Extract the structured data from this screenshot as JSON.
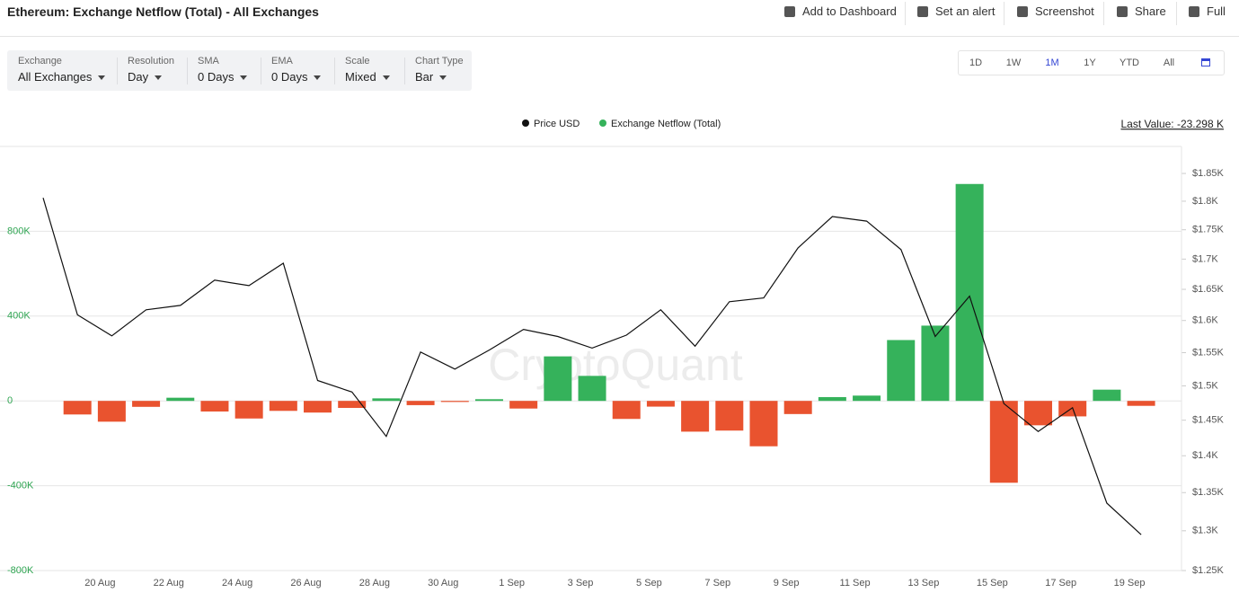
{
  "header": {
    "title": "Ethereum: Exchange Netflow (Total) - All Exchanges",
    "actions": [
      "Add to Dashboard",
      "Set an alert",
      "Screenshot",
      "Share",
      "Full"
    ]
  },
  "toolbar": {
    "filters": [
      {
        "label": "Exchange",
        "value": "All Exchanges"
      },
      {
        "label": "Resolution",
        "value": "Day"
      },
      {
        "label": "SMA",
        "value": "0 Days"
      },
      {
        "label": "EMA",
        "value": "0 Days"
      },
      {
        "label": "Scale",
        "value": "Mixed"
      },
      {
        "label": "Chart Type",
        "value": "Bar"
      }
    ],
    "ranges": [
      "1D",
      "1W",
      "1M",
      "1Y",
      "YTD",
      "All"
    ]
  },
  "chart_data": {
    "type": "combo",
    "last_value": "Last Value: -23.298 K",
    "watermark": "CryptoQuant",
    "categories": [
      null,
      null,
      "20 Aug",
      null,
      "22 Aug",
      null,
      "24 Aug",
      null,
      "26 Aug",
      null,
      "28 Aug",
      null,
      "30 Aug",
      null,
      "1 Sep",
      null,
      "3 Sep",
      null,
      "5 Sep",
      null,
      "7 Sep",
      null,
      "9 Sep",
      null,
      "11 Sep",
      null,
      "13 Sep",
      null,
      "15 Sep",
      null,
      "17 Sep",
      null,
      "19 Sep"
    ],
    "series": [
      {
        "name": "Price USD",
        "type": "line",
        "axis": "y2",
        "color": "#111111",
        "values": [
          1806,
          1609,
          1576,
          1617,
          1624,
          1665,
          1656,
          1693,
          1508,
          1491,
          1427,
          1551,
          1525,
          1554,
          1586,
          1575,
          1557,
          1577,
          1617,
          1560,
          1630,
          1636,
          1719,
          1773,
          1765,
          1716,
          1575,
          1639,
          1474,
          1434,
          1468,
          1336,
          1295
        ]
      },
      {
        "name": "Exchange Netflow (Total)",
        "type": "bar",
        "color": "#35b25b",
        "negative_color": "#e9532f",
        "values": [
          null,
          -64000,
          -98000,
          -28000,
          15000,
          -50000,
          -83000,
          -47000,
          -55000,
          -33000,
          12000,
          -20000,
          -5000,
          8000,
          -36000,
          210000,
          118000,
          -85000,
          -27000,
          -145000,
          -140000,
          -214000,
          -62000,
          18000,
          25000,
          287000,
          355000,
          1023000,
          -386000,
          -115000,
          -73000,
          53000,
          -23298
        ]
      }
    ],
    "ylim": [
      -800000,
      1200000
    ],
    "yticks": [
      {
        "value": -800000,
        "label": "-800K"
      },
      {
        "value": -400000,
        "label": "-400K"
      },
      0,
      {
        "value": 400000,
        "label": "400K"
      },
      {
        "value": 800000,
        "label": "800K"
      }
    ],
    "y2lim": [
      1250,
      1900
    ],
    "y2scale": "log",
    "y2ticks": [
      {
        "value": 1250,
        "label": "$1.25K"
      },
      {
        "value": 1300,
        "label": "$1.3K"
      },
      {
        "value": 1350,
        "label": "$1.35K"
      },
      {
        "value": 1400,
        "label": "$1.4K"
      },
      {
        "value": 1450,
        "label": "$1.45K"
      },
      {
        "value": 1500,
        "label": "$1.5K"
      },
      {
        "value": 1550,
        "label": "$1.55K"
      },
      {
        "value": 1600,
        "label": "$1.6K"
      },
      {
        "value": 1650,
        "label": "$1.65K"
      },
      {
        "value": 1700,
        "label": "$1.7K"
      },
      {
        "value": 1750,
        "label": "$1.75K"
      },
      {
        "value": 1800,
        "label": "$1.8K"
      },
      {
        "value": 1850,
        "label": "$1.85K"
      }
    ],
    "grid": true
  }
}
